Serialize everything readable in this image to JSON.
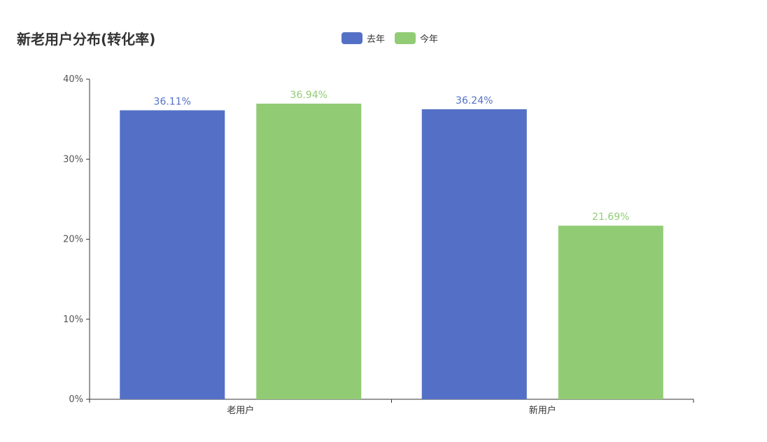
{
  "title": "新老用户分布(转化率)",
  "legend": [
    {
      "name": "去年",
      "color": "#5470c6"
    },
    {
      "name": "今年",
      "color": "#91cc75"
    }
  ],
  "chart_data": {
    "type": "bar",
    "title": "新老用户分布(转化率)",
    "categories": [
      "老用户",
      "新用户"
    ],
    "series": [
      {
        "name": "去年",
        "color": "#5470c6",
        "values": [
          36.11,
          36.24
        ],
        "labels": [
          "36.11%",
          "36.24%"
        ]
      },
      {
        "name": "今年",
        "color": "#91cc75",
        "values": [
          36.94,
          21.69
        ],
        "labels": [
          "36.94%",
          "21.69%"
        ]
      }
    ],
    "xlabel": "",
    "ylabel": "",
    "ylim": [
      0,
      40
    ],
    "yticks": [
      "0%",
      "10%",
      "20%",
      "30%",
      "40%"
    ],
    "grid": false,
    "legend_position": "top-center"
  }
}
